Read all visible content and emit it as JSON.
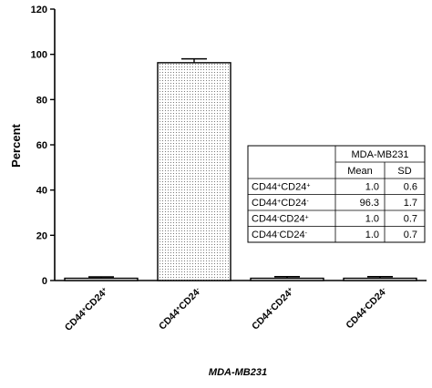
{
  "chart_data": {
    "type": "bar",
    "categories": [
      {
        "base": "CD44",
        "sup1": "+",
        "base2": "CD24",
        "sup2": "+"
      },
      {
        "base": "CD44",
        "sup1": "+",
        "base2": "CD24",
        "sup2": "-"
      },
      {
        "base": "CD44",
        "sup1": "-",
        "base2": "CD24",
        "sup2": "+"
      },
      {
        "base": "CD44",
        "sup1": "-",
        "base2": "CD24",
        "sup2": "-"
      }
    ],
    "values": [
      1.0,
      96.3,
      1.0,
      1.0
    ],
    "errors": [
      0.6,
      1.7,
      0.7,
      0.7
    ],
    "ylabel": "Percent",
    "xlabel": "MDA-MB231",
    "ylim": [
      0,
      120
    ],
    "yticks": [
      0,
      20,
      40,
      60,
      80,
      100,
      120
    ],
    "bar_fill": "#ffffff",
    "highlight_fill_pattern": "dotted",
    "table": {
      "title": "MDA-MB231",
      "headers": [
        "Mean",
        "SD"
      ],
      "rows": [
        {
          "base": "CD44",
          "sup1": "+",
          "base2": "CD24",
          "sup2": "+",
          "mean": "1.0",
          "sd": "0.6"
        },
        {
          "base": "CD44",
          "sup1": "+",
          "base2": "CD24",
          "sup2": "-",
          "mean": "96.3",
          "sd": "1.7"
        },
        {
          "base": "CD44",
          "sup1": "-",
          "base2": "CD24",
          "sup2": "+",
          "mean": "1.0",
          "sd": "0.7"
        },
        {
          "base": "CD44",
          "sup1": "-",
          "base2": "CD24",
          "sup2": "-",
          "mean": "1.0",
          "sd": "0.7"
        }
      ]
    }
  }
}
